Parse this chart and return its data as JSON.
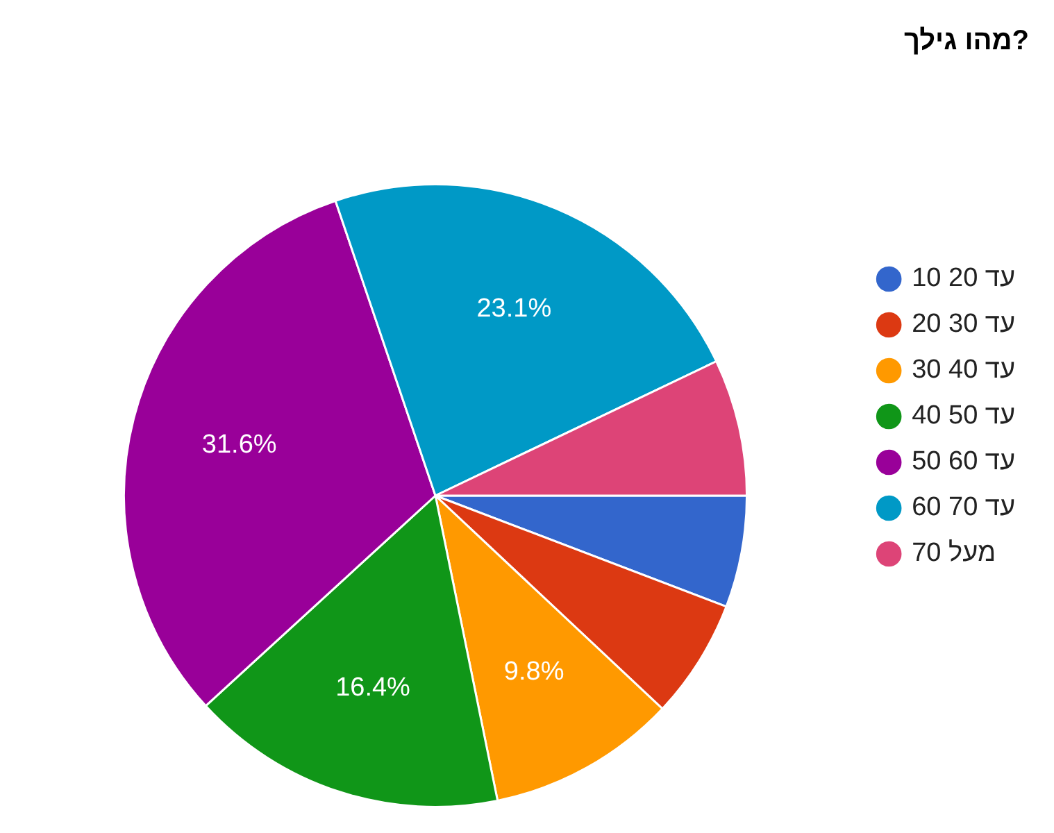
{
  "chart_data": {
    "type": "pie",
    "title": "מהו גילך?",
    "categories": [
      "10 20 עד",
      "20 30 עד",
      "30 40 עד",
      "40 50 עד",
      "50 60 עד",
      "60 70 עד",
      "מעל 70"
    ],
    "values": [
      5.8,
      6.2,
      9.8,
      16.4,
      31.6,
      23.1,
      7.1
    ],
    "value_labels": [
      null,
      null,
      "9.8%",
      "16.4%",
      "31.6%",
      "23.1%",
      null
    ],
    "colors": [
      "#3366cc",
      "#dc3912",
      "#ff9900",
      "#109618",
      "#990099",
      "#0099c6",
      "#dd4477"
    ],
    "legend": "right"
  }
}
